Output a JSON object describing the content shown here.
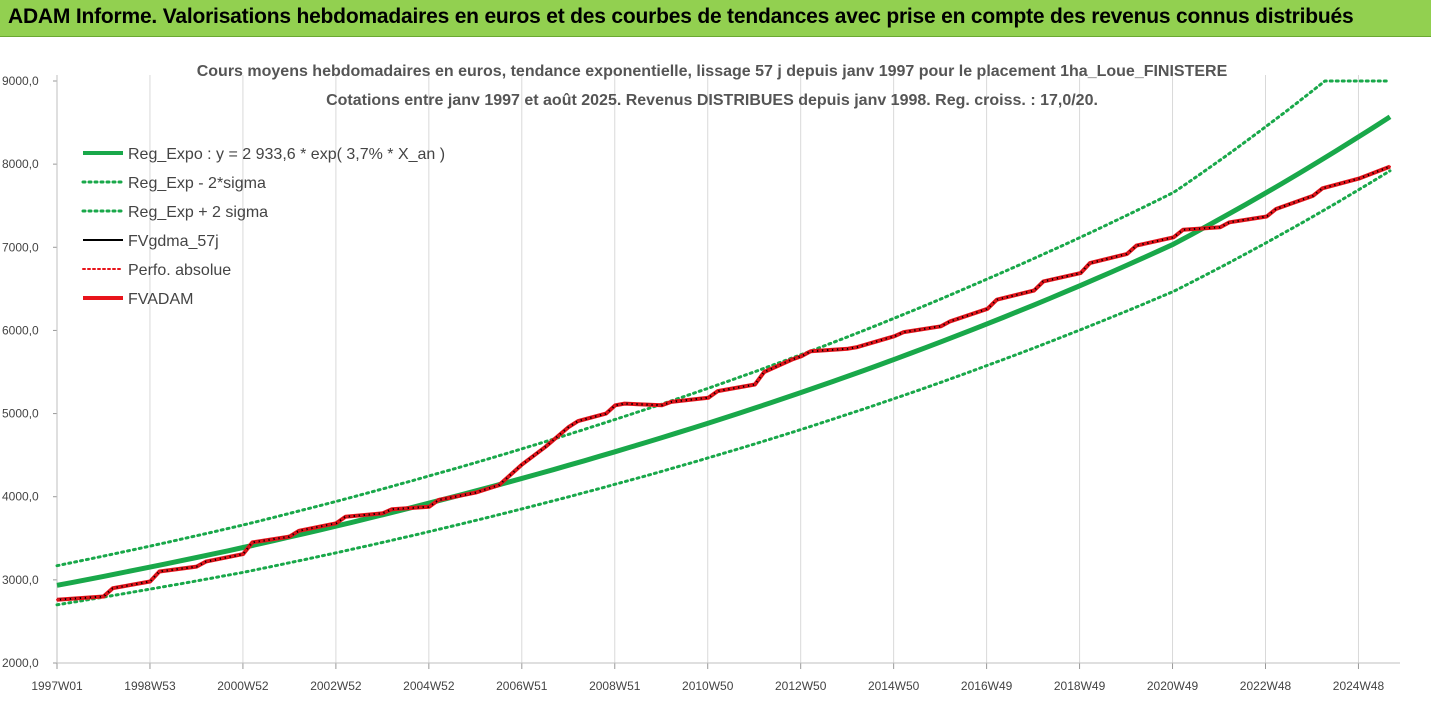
{
  "header": {
    "title": "ADAM Informe. Valorisations hebdomadaires en euros et des courbes de tendances avec prise en compte des revenus connus distribués"
  },
  "chart_data": {
    "type": "line",
    "title_line1": "Cours moyens hebdomadaires en euros, tendance exponentielle, lissage 57 j depuis janv 1997  pour le placement 1ha_Loue_FINISTERE",
    "title_line2": "Cotations entre janv 1997 et août 2025. Revenus DISTRIBUES depuis janv 1998. Reg. croiss. : 17,0/20.",
    "ylim": [
      2000,
      9000
    ],
    "y_ticks": [
      "2000,0",
      "3000,0",
      "4000,0",
      "5000,0",
      "6000,0",
      "7000,0",
      "8000,0",
      "9000,0"
    ],
    "x_ticks": [
      "1997W01",
      "1998W53",
      "2000W52",
      "2002W52",
      "2004W52",
      "2006W51",
      "2008W51",
      "2010W50",
      "2012W50",
      "2014W50",
      "2016W49",
      "2018W49",
      "2020W49",
      "2022W48",
      "2024W48"
    ],
    "x_range_years": [
      1997.0,
      2025.65
    ],
    "grid_vertical": true,
    "legend_placement": "top-left",
    "colors": {
      "trend": "#19a84a",
      "actual": "#e8141b",
      "smoothed": "#000000"
    },
    "series": [
      {
        "name": "Reg_Expo : y = 2 933,6 * exp( 3,7% *  X_an )",
        "style": "solid-thick-green",
        "x": [
          1997.0,
          2001.0,
          2005.0,
          2009.0,
          2013.0,
          2017.0,
          2021.0,
          2025.65
        ],
        "values": [
          2934,
          3389,
          3923,
          4542,
          5255,
          6081,
          7038,
          8570
        ]
      },
      {
        "name": "Reg_Exp - 2*sigma",
        "style": "dotted-green",
        "x": [
          1997.0,
          2001.0,
          2005.0,
          2009.0,
          2013.0,
          2017.0,
          2021.0,
          2025.65
        ],
        "values": [
          2700,
          3090,
          3580,
          4150,
          4810,
          5580,
          6470,
          7920
        ]
      },
      {
        "name": "Reg_Exp + 2 sigma",
        "style": "dotted-green",
        "x": [
          1997.0,
          2001.0,
          2005.0,
          2009.0,
          2013.0,
          2017.0,
          2021.0,
          2024.25,
          2025.65
        ],
        "values": [
          3170,
          3660,
          4250,
          4930,
          5710,
          6620,
          7660,
          9000,
          9000
        ]
      },
      {
        "name": "FVgdma_57j",
        "style": "solid-thin-black",
        "x": [
          1997.0,
          1998.0,
          1998.2,
          1999.0,
          1999.2,
          2000.0,
          2000.2,
          2001.0,
          2001.2,
          2002.0,
          2002.2,
          2003.0,
          2003.2,
          2004.0,
          2004.2,
          2005.0,
          2005.2,
          2006.0,
          2006.5,
          2007.0,
          2007.5,
          2008.0,
          2008.2,
          2008.8,
          2009.0,
          2009.2,
          2010.0,
          2010.2,
          2011.0,
          2011.2,
          2012.0,
          2012.2,
          2012.8,
          2013.0,
          2013.2,
          2014.0,
          2014.2,
          2015.0,
          2015.2,
          2016.0,
          2016.2,
          2017.0,
          2017.2,
          2018.0,
          2018.2,
          2019.0,
          2019.2,
          2020.0,
          2020.2,
          2021.0,
          2021.2,
          2022.0,
          2022.2,
          2023.0,
          2023.2,
          2024.0,
          2024.2,
          2025.0,
          2025.65
        ],
        "values": [
          2760,
          2800,
          2900,
          2980,
          3100,
          3160,
          3220,
          3310,
          3450,
          3520,
          3590,
          3680,
          3760,
          3800,
          3850,
          3880,
          3960,
          4050,
          4140,
          4390,
          4600,
          4840,
          4910,
          5000,
          5100,
          5120,
          5100,
          5140,
          5190,
          5270,
          5350,
          5500,
          5650,
          5690,
          5750,
          5780,
          5800,
          5930,
          5980,
          6050,
          6110,
          6260,
          6370,
          6480,
          6590,
          6690,
          6810,
          6920,
          7020,
          7120,
          7210,
          7240,
          7300,
          7370,
          7460,
          7620,
          7710,
          7830,
          7970
        ]
      },
      {
        "name": "Perfo. absolue",
        "style": "dotted-red",
        "x": [
          1997.0,
          1998.0,
          1998.2,
          1999.0,
          1999.2,
          2000.0,
          2000.2,
          2001.0,
          2001.2,
          2002.0,
          2002.2,
          2003.0,
          2003.2,
          2004.0,
          2004.2,
          2005.0,
          2005.2,
          2006.0,
          2006.5,
          2007.0,
          2007.5,
          2008.0,
          2008.2,
          2008.8,
          2009.0,
          2009.2,
          2010.0,
          2010.2,
          2011.0,
          2011.2,
          2012.0,
          2012.2,
          2012.8,
          2013.0,
          2013.2,
          2014.0,
          2014.2,
          2015.0,
          2015.2,
          2016.0,
          2016.2,
          2017.0,
          2017.2,
          2018.0,
          2018.2,
          2019.0,
          2019.2,
          2020.0,
          2020.2,
          2021.0,
          2021.2,
          2022.0,
          2022.2,
          2023.0,
          2023.2,
          2024.0,
          2024.2,
          2025.0,
          2025.65
        ],
        "values": [
          2760,
          2800,
          2900,
          2980,
          3100,
          3160,
          3220,
          3310,
          3450,
          3520,
          3590,
          3680,
          3760,
          3800,
          3850,
          3880,
          3960,
          4050,
          4140,
          4390,
          4600,
          4840,
          4910,
          5000,
          5100,
          5120,
          5100,
          5140,
          5190,
          5270,
          5350,
          5500,
          5650,
          5690,
          5750,
          5780,
          5800,
          5930,
          5980,
          6050,
          6110,
          6260,
          6370,
          6480,
          6590,
          6690,
          6810,
          6920,
          7020,
          7120,
          7210,
          7240,
          7300,
          7370,
          7460,
          7620,
          7710,
          7830,
          7970
        ]
      },
      {
        "name": "FVADAM",
        "style": "solid-thick-red",
        "x": [
          1997.0,
          1998.0,
          1998.2,
          1999.0,
          1999.2,
          2000.0,
          2000.2,
          2001.0,
          2001.2,
          2002.0,
          2002.2,
          2003.0,
          2003.2,
          2004.0,
          2004.2,
          2005.0,
          2005.2,
          2006.0,
          2006.5,
          2007.0,
          2007.5,
          2008.0,
          2008.2,
          2008.8,
          2009.0,
          2009.2,
          2010.0,
          2010.2,
          2011.0,
          2011.2,
          2012.0,
          2012.2,
          2012.8,
          2013.0,
          2013.2,
          2014.0,
          2014.2,
          2015.0,
          2015.2,
          2016.0,
          2016.2,
          2017.0,
          2017.2,
          2018.0,
          2018.2,
          2019.0,
          2019.2,
          2020.0,
          2020.2,
          2021.0,
          2021.2,
          2022.0,
          2022.2,
          2023.0,
          2023.2,
          2024.0,
          2024.2,
          2025.0,
          2025.65
        ],
        "values": [
          2760,
          2800,
          2900,
          2980,
          3100,
          3160,
          3220,
          3310,
          3450,
          3520,
          3590,
          3680,
          3760,
          3800,
          3850,
          3880,
          3960,
          4050,
          4140,
          4390,
          4600,
          4840,
          4910,
          5000,
          5100,
          5120,
          5100,
          5140,
          5190,
          5270,
          5350,
          5500,
          5650,
          5690,
          5750,
          5780,
          5800,
          5930,
          5980,
          6050,
          6110,
          6260,
          6370,
          6480,
          6590,
          6690,
          6810,
          6920,
          7020,
          7120,
          7210,
          7240,
          7300,
          7370,
          7460,
          7620,
          7710,
          7830,
          7970
        ]
      }
    ]
  }
}
